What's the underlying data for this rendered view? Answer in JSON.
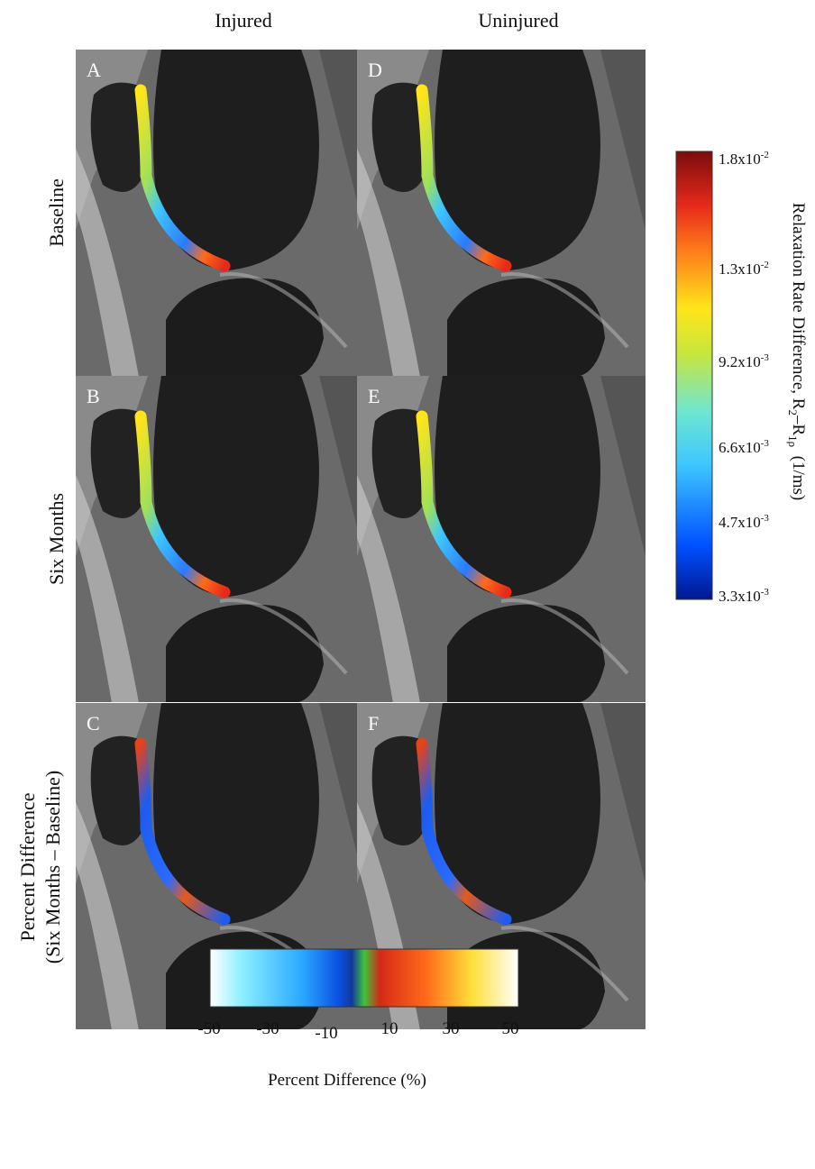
{
  "column_headers": [
    "Injured",
    "Uninjured"
  ],
  "row_labels": [
    [
      "Baseline"
    ],
    [
      "Six Months"
    ],
    [
      "Percent Difference",
      "(Six Months – Baseline)"
    ]
  ],
  "panels": [
    "A",
    "B",
    "C",
    "D",
    "E",
    "F"
  ],
  "relaxation_colorbar": {
    "title": [
      "Relaxation Rate Difference, R",
      "2",
      "–R",
      "1ρ",
      "  (1/ms)"
    ],
    "ticks": [
      {
        "mantissa": "1.8x10",
        "exponent": "-2"
      },
      {
        "mantissa": "1.3x10",
        "exponent": "-2"
      },
      {
        "mantissa": "9.2x10",
        "exponent": "-3"
      },
      {
        "mantissa": "6.6x10",
        "exponent": "-3"
      },
      {
        "mantissa": "4.7x10",
        "exponent": "-3"
      },
      {
        "mantissa": "3.3x10",
        "exponent": "-3"
      }
    ]
  },
  "percent_colorbar": {
    "ticks": [
      -50,
      -30,
      -10,
      10,
      30,
      50
    ],
    "label": "Percent Difference (%)"
  }
}
